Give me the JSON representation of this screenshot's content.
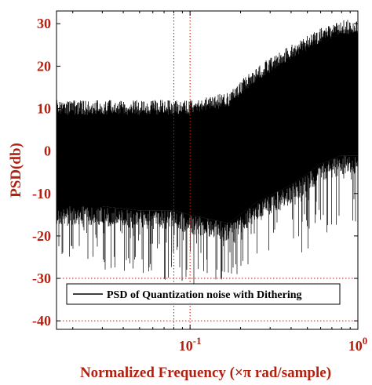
{
  "chart_data": {
    "type": "line",
    "title": "",
    "xlabel": "Normalized Frequency (×π rad/sample)",
    "ylabel": "PSD(db)",
    "xscale": "log",
    "xlim": [
      0.016,
      1.0
    ],
    "ylim": [
      -42,
      33
    ],
    "x_ticks": [
      {
        "value": 0.1,
        "base": "10",
        "exp": "-1"
      },
      {
        "value": 1.0,
        "base": "10",
        "exp": "0"
      }
    ],
    "y_ticks": [
      {
        "value": 30,
        "label": "30"
      },
      {
        "value": 20,
        "label": "20"
      },
      {
        "value": 10,
        "label": "10"
      },
      {
        "value": 0,
        "label": "0"
      },
      {
        "value": -10,
        "label": "-10"
      },
      {
        "value": -20,
        "label": "-20"
      },
      {
        "value": -30,
        "label": "-30"
      },
      {
        "value": -40,
        "label": "-40"
      }
    ],
    "grid": {
      "x_major": [
        0.1
      ],
      "x_minor_shown": [
        0.08
      ],
      "y": [
        -30,
        -40
      ],
      "style": "dotted",
      "color": "#b3200f"
    },
    "legend": {
      "position": "bottom-left",
      "entries": [
        "PSD of Quantization noise with Dithering"
      ]
    },
    "series": [
      {
        "name": "PSD of Quantization noise with Dithering",
        "color": "#000000",
        "envelope": {
          "x": [
            0.016,
            0.03,
            0.05,
            0.08,
            0.1,
            0.13,
            0.17,
            0.25,
            0.4,
            0.6,
            0.8,
            1.0
          ],
          "upper": [
            12,
            12,
            12,
            12,
            12,
            13,
            14,
            20,
            25,
            29,
            31,
            31
          ],
          "lower": [
            -13,
            -13,
            -14,
            -14,
            -15,
            -16,
            -17,
            -12,
            -8,
            -3,
            -1,
            -1
          ],
          "min_spike": [
            -25,
            -28,
            -29,
            -31,
            -32,
            -33,
            -30,
            -28,
            -25,
            -22,
            -20,
            -20
          ]
        }
      }
    ]
  }
}
